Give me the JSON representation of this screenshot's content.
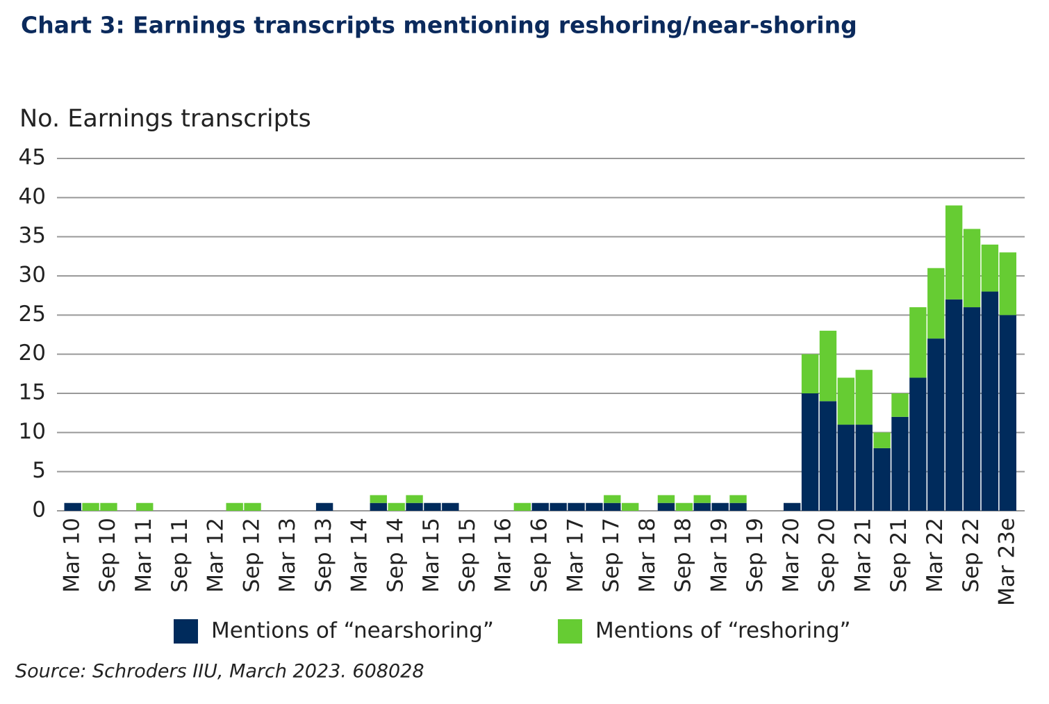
{
  "chart_data": {
    "type": "stacked_bar",
    "title": "Chart 3: Earnings transcripts mentioning reshoring/near-shoring",
    "y_label": "No. Earnings transcripts",
    "source": "Source: Schroders IIU, March 2023. 608028",
    "categories": [
      "Mar 10",
      null,
      "Sep 10",
      null,
      "Mar 11",
      null,
      "Sep 11",
      null,
      "Mar 12",
      null,
      "Sep 12",
      null,
      "Mar 13",
      null,
      "Sep 13",
      null,
      "Mar 14",
      null,
      "Sep 14",
      null,
      "Mar 15",
      null,
      "Sep 15",
      null,
      "Mar 16",
      null,
      "Sep 16",
      null,
      "Mar 17",
      null,
      "Sep 17",
      null,
      "Mar 18",
      null,
      "Sep 18",
      null,
      "Mar 19",
      null,
      "Sep 19",
      null,
      "Mar 20",
      null,
      "Sep 20",
      null,
      "Mar 21",
      null,
      "Sep 21",
      null,
      "Mar 22",
      null,
      "Sep 22",
      null,
      "Mar 23e"
    ],
    "series": [
      {
        "name": "Mentions of “nearshoring”",
        "color": "#002b5c",
        "values": [
          1,
          0,
          0,
          0,
          0,
          0,
          0,
          0,
          0,
          0,
          0,
          0,
          0,
          0,
          1,
          0,
          0,
          1,
          0,
          1,
          1,
          1,
          0,
          0,
          0,
          0,
          1,
          1,
          1,
          1,
          1,
          0,
          0,
          1,
          0,
          1,
          1,
          1,
          0,
          0,
          1,
          15,
          14,
          11,
          11,
          8,
          12,
          17,
          22,
          27,
          26,
          28,
          25
        ]
      },
      {
        "name": "Mentions of “reshoring”",
        "color": "#66cc33",
        "values": [
          0,
          1,
          1,
          0,
          1,
          0,
          0,
          0,
          0,
          1,
          1,
          0,
          0,
          0,
          0,
          0,
          0,
          1,
          1,
          1,
          0,
          0,
          0,
          0,
          0,
          1,
          0,
          0,
          0,
          0,
          1,
          1,
          0,
          1,
          1,
          1,
          0,
          1,
          0,
          0,
          0,
          5,
          9,
          6,
          7,
          2,
          3,
          9,
          9,
          12,
          10,
          6,
          8
        ]
      }
    ],
    "ylim": [
      0,
      45
    ],
    "yticks": [
      0,
      5,
      10,
      15,
      20,
      25,
      30,
      35,
      40,
      45
    ],
    "grid": true,
    "legend": "bottom"
  }
}
